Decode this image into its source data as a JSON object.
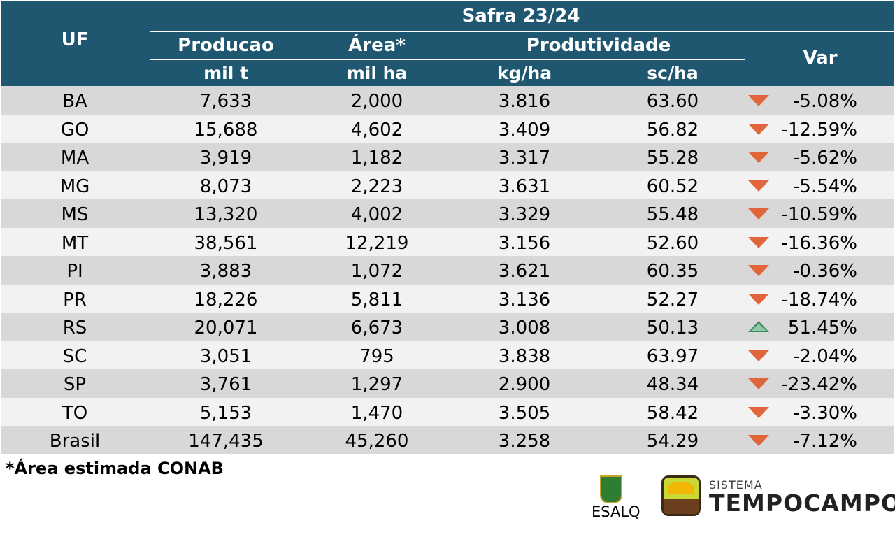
{
  "header": {
    "safra": "Safra 23/24",
    "uf": "UF",
    "var": "Var",
    "producao": "Producao",
    "area": "Área*",
    "produtividade": "Produtividade",
    "unit_producao": "mil t",
    "unit_area": "mil ha",
    "unit_kg": "kg/ha",
    "unit_sc": "sc/ha"
  },
  "rows": [
    {
      "uf": "BA",
      "producao": "7,633",
      "area": "2,000",
      "kg": "3.816",
      "sc": "63.60",
      "var": "-5.08%",
      "trend": "down"
    },
    {
      "uf": "GO",
      "producao": "15,688",
      "area": "4,602",
      "kg": "3.409",
      "sc": "56.82",
      "var": "-12.59%",
      "trend": "down"
    },
    {
      "uf": "MA",
      "producao": "3,919",
      "area": "1,182",
      "kg": "3.317",
      "sc": "55.28",
      "var": "-5.62%",
      "trend": "down"
    },
    {
      "uf": "MG",
      "producao": "8,073",
      "area": "2,223",
      "kg": "3.631",
      "sc": "60.52",
      "var": "-5.54%",
      "trend": "down"
    },
    {
      "uf": "MS",
      "producao": "13,320",
      "area": "4,002",
      "kg": "3.329",
      "sc": "55.48",
      "var": "-10.59%",
      "trend": "down"
    },
    {
      "uf": "MT",
      "producao": "38,561",
      "area": "12,219",
      "kg": "3.156",
      "sc": "52.60",
      "var": "-16.36%",
      "trend": "down"
    },
    {
      "uf": "PI",
      "producao": "3,883",
      "area": "1,072",
      "kg": "3.621",
      "sc": "60.35",
      "var": "-0.36%",
      "trend": "down"
    },
    {
      "uf": "PR",
      "producao": "18,226",
      "area": "5,811",
      "kg": "3.136",
      "sc": "52.27",
      "var": "-18.74%",
      "trend": "down"
    },
    {
      "uf": "RS",
      "producao": "20,071",
      "area": "6,673",
      "kg": "3.008",
      "sc": "50.13",
      "var": "51.45%",
      "trend": "up"
    },
    {
      "uf": "SC",
      "producao": "3,051",
      "area": "795",
      "kg": "3.838",
      "sc": "63.97",
      "var": "-2.04%",
      "trend": "down"
    },
    {
      "uf": "SP",
      "producao": "3,761",
      "area": "1,297",
      "kg": "2.900",
      "sc": "48.34",
      "var": "-23.42%",
      "trend": "down"
    },
    {
      "uf": "TO",
      "producao": "5,153",
      "area": "1,470",
      "kg": "3.505",
      "sc": "58.42",
      "var": "-3.30%",
      "trend": "down"
    },
    {
      "uf": "Brasil",
      "producao": "147,435",
      "area": "45,260",
      "kg": "3.258",
      "sc": "54.29",
      "var": "-7.12%",
      "trend": "down"
    }
  ],
  "footnote": "*Área estimada CONAB",
  "logos": {
    "esalq": "ESALQ",
    "tempocampo_top": "SISTEMA",
    "tempocampo_name": "TEMPOCAMPO"
  },
  "colors": {
    "header_bg": "#1f5670",
    "row_shade": "#d8d8d8",
    "row_light": "#f2f2f2",
    "down_arrow": "#e0653a",
    "up_arrow": "#3f8a64"
  }
}
